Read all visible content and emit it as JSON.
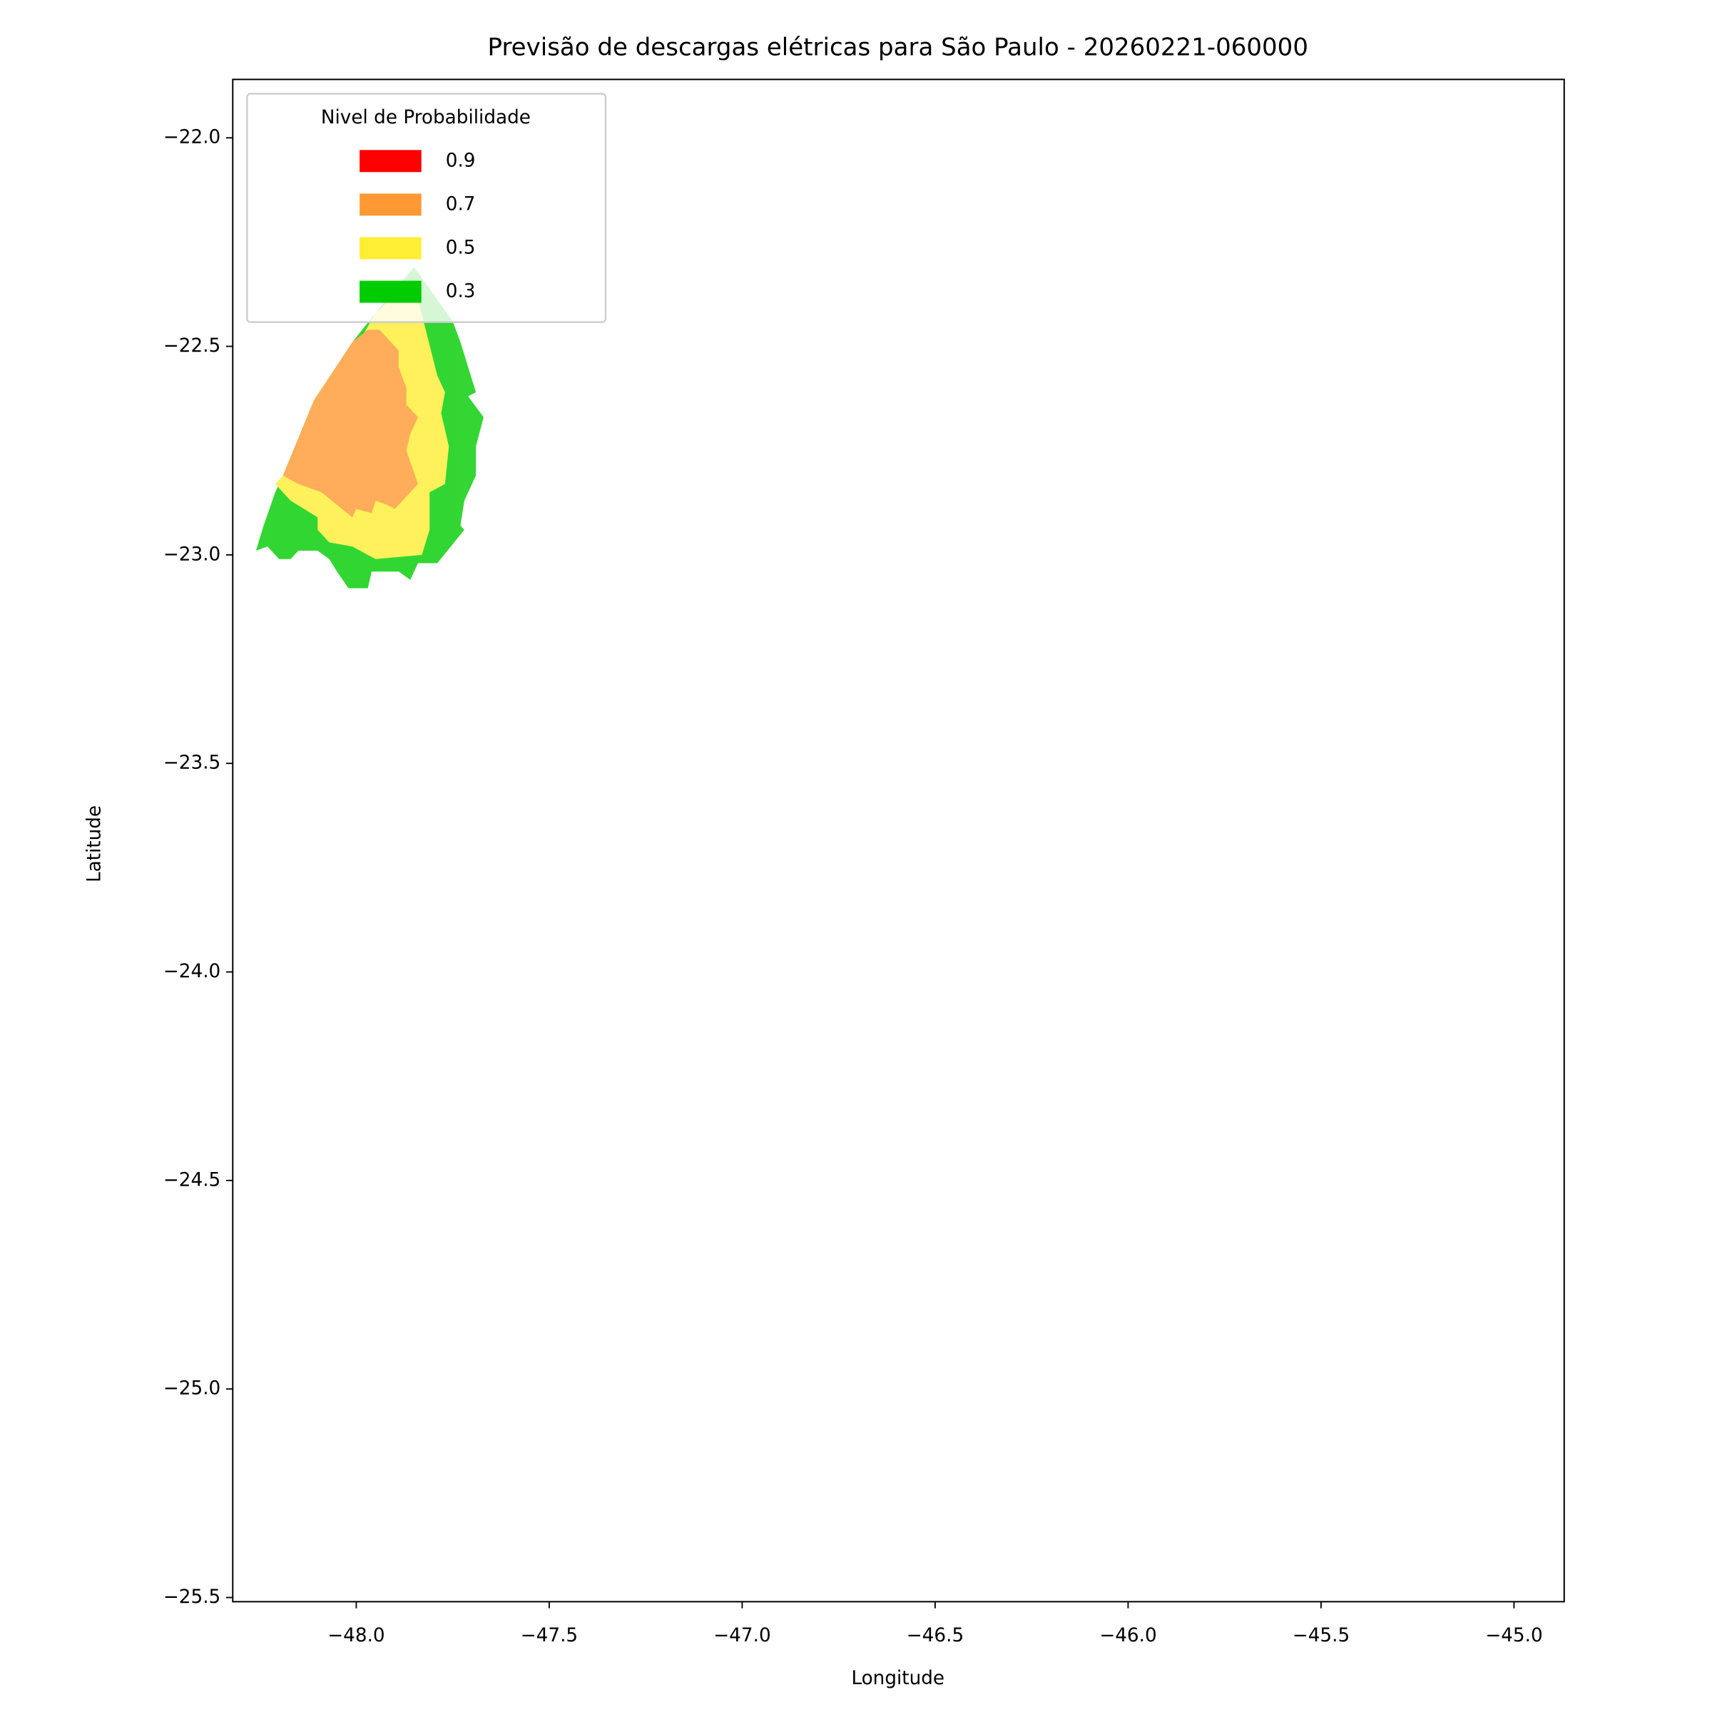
{
  "chart_data": {
    "type": "contour",
    "title": "Previsão de descargas elétricas para São Paulo - 20260221-060000",
    "x_label": "Longitude",
    "y_label": "Latitude",
    "legend_title": "Nivel de Probabilidade",
    "legend": "upper left",
    "fill_opacity": 0.8,
    "xlim": [
      -48.32,
      -44.87
    ],
    "ylim": [
      -25.51,
      -21.86
    ],
    "xticks": [
      {
        "value": -48.0,
        "label": "−48.0"
      },
      {
        "value": -47.5,
        "label": "−47.5"
      },
      {
        "value": -47.0,
        "label": "−47.0"
      },
      {
        "value": -46.5,
        "label": "−46.5"
      },
      {
        "value": -46.0,
        "label": "−46.0"
      },
      {
        "value": -45.5,
        "label": "−45.5"
      },
      {
        "value": -45.0,
        "label": "−45.0"
      }
    ],
    "yticks": [
      {
        "value": -22.0,
        "label": "−22.0"
      },
      {
        "value": -22.5,
        "label": "−22.5"
      },
      {
        "value": -23.0,
        "label": "−23.0"
      },
      {
        "value": -23.5,
        "label": "−23.5"
      },
      {
        "value": -24.0,
        "label": "−24.0"
      },
      {
        "value": -24.5,
        "label": "−24.5"
      },
      {
        "value": -25.0,
        "label": "−25.0"
      },
      {
        "value": -25.5,
        "label": "−25.5"
      }
    ],
    "series": [
      {
        "name": "0.9",
        "color": "#ff0000"
      },
      {
        "name": "0.7",
        "color": "#ff9933",
        "x": [
          -48.19,
          -48.11,
          -48.01,
          -47.97,
          -47.94,
          -47.89,
          -47.89,
          -47.87,
          -47.87,
          -47.84,
          -47.86,
          -47.87,
          -47.84,
          -47.9,
          -47.92,
          -47.95,
          -47.96,
          -48.0,
          -48.01,
          -48.09,
          -48.15
        ],
        "y": [
          -22.81,
          -22.63,
          -22.49,
          -22.46,
          -22.46,
          -22.51,
          -22.55,
          -22.6,
          -22.64,
          -22.67,
          -22.71,
          -22.75,
          -22.83,
          -22.89,
          -22.88,
          -22.87,
          -22.9,
          -22.89,
          -22.91,
          -22.85,
          -22.83
        ]
      },
      {
        "name": "0.5",
        "color": "#ffee33",
        "x": [
          -47.85,
          -47.82,
          -47.79,
          -47.77,
          -47.78,
          -47.76,
          -47.77,
          -47.81,
          -47.81,
          -47.83,
          -47.95,
          -48.01,
          -48.07,
          -48.1,
          -48.1,
          -48.17,
          -48.21,
          -48.19,
          -47.95,
          -47.89
        ],
        "y": [
          -22.35,
          -22.46,
          -22.57,
          -22.61,
          -22.66,
          -22.74,
          -22.83,
          -22.85,
          -22.94,
          -23.0,
          -23.01,
          -22.98,
          -22.97,
          -22.94,
          -22.91,
          -22.87,
          -22.83,
          -22.81,
          -22.42,
          -22.37
        ]
      },
      {
        "name": "0.3",
        "color": "#00cc00",
        "x": [
          -47.85,
          -47.75,
          -47.73,
          -47.69,
          -47.71,
          -47.67,
          -47.69,
          -47.69,
          -47.72,
          -47.73,
          -47.72,
          -47.79,
          -47.84,
          -47.86,
          -47.89,
          -47.96,
          -47.97,
          -48.02,
          -48.05,
          -48.07,
          -48.1,
          -48.15,
          -48.17,
          -48.2,
          -48.23,
          -48.26,
          -48.24,
          -48.21,
          -48.19,
          -48.11,
          -48.01,
          -47.95
        ],
        "y": [
          -22.31,
          -22.44,
          -22.49,
          -22.61,
          -22.62,
          -22.67,
          -22.74,
          -22.81,
          -22.87,
          -22.93,
          -22.94,
          -23.02,
          -23.02,
          -23.06,
          -23.04,
          -23.04,
          -23.08,
          -23.08,
          -23.04,
          -23.01,
          -22.99,
          -22.99,
          -23.01,
          -23.01,
          -22.98,
          -22.99,
          -22.93,
          -22.85,
          -22.81,
          -22.63,
          -22.49,
          -22.42
        ]
      }
    ]
  }
}
